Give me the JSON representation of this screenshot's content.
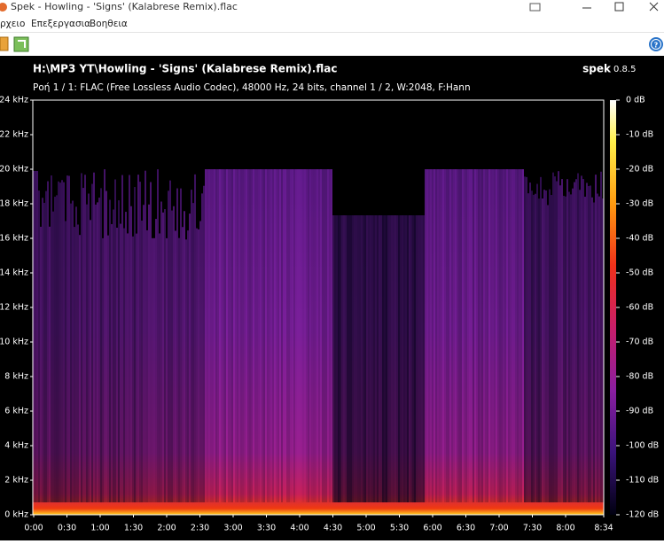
{
  "window": {
    "title": "Spek - Howling - 'Signs' (Kalabrese Remix).flac"
  },
  "menu": [
    "ρχειο",
    "Επεξεργασια",
    "Βοηθεια"
  ],
  "header": {
    "file": "H:\\MP3 YT\\Howling - 'Signs' (Kalabrese Remix).flac",
    "app": "spek",
    "version": "0.8.5",
    "info": "Ροή 1 / 1: FLAC (Free Lossless Audio Codec), 48000 Hz, 24 bits, channel 1 / 2, W:2048, F:Hann"
  },
  "spectrogram": {
    "y_ticks": [
      "0 kHz",
      "2 kHz",
      "4 kHz",
      "6 kHz",
      "8 kHz",
      "10 kHz",
      "12 kHz",
      "14 kHz",
      "16 kHz",
      "18 kHz",
      "20 kHz",
      "22 kHz",
      "24 kHz"
    ],
    "x_ticks": [
      "0:00",
      "0:30",
      "1:00",
      "1:30",
      "2:00",
      "2:30",
      "3:00",
      "3:30",
      "4:00",
      "4:30",
      "5:00",
      "5:30",
      "6:00",
      "6:30",
      "7:00",
      "7:30",
      "8:00",
      "8:34"
    ],
    "db_ticks": [
      "0 dB",
      "-10 dB",
      "-20 dB",
      "-30 dB",
      "-40 dB",
      "-50 dB",
      "-60 dB",
      "-70 dB",
      "-80 dB",
      "-90 dB",
      "-100 dB",
      "-110 dB",
      "-120 dB"
    ]
  }
}
